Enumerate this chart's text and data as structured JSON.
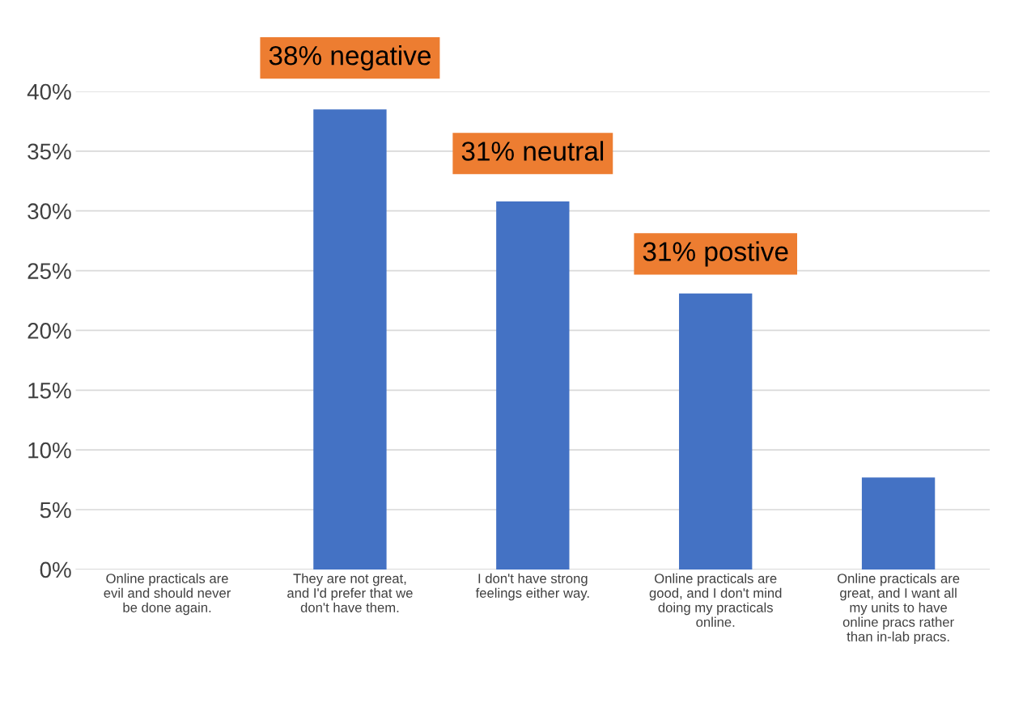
{
  "chart_data": {
    "type": "bar",
    "categories": [
      "Online practicals are\nevil and should never\nbe done again.",
      "They are not great,\nand I'd prefer that we\ndon't have them.",
      "I don't have strong\nfeelings either way.",
      "Online practicals are\ngood, and I don't mind\ndoing my practicals\nonline.",
      "Online practicals are\ngreat, and I want all\nmy units to have\nonline pracs rather\nthan in-lab pracs."
    ],
    "values": [
      0,
      38.5,
      30.8,
      23.1,
      7.7
    ],
    "color": "#4472c4",
    "ylim": [
      0,
      40
    ],
    "yticks": [
      {
        "value": 0,
        "label": "0%"
      },
      {
        "value": 5,
        "label": "5%"
      },
      {
        "value": 10,
        "label": "10%"
      },
      {
        "value": 15,
        "label": "15%"
      },
      {
        "value": 20,
        "label": "20%"
      },
      {
        "value": 25,
        "label": "25%"
      },
      {
        "value": 30,
        "label": "30%"
      },
      {
        "value": 35,
        "label": "35%"
      },
      {
        "value": 40,
        "label": "40%"
      }
    ],
    "grid": "y",
    "annotations": [
      "38% negative",
      "31% neutral",
      "31% postive"
    ]
  }
}
